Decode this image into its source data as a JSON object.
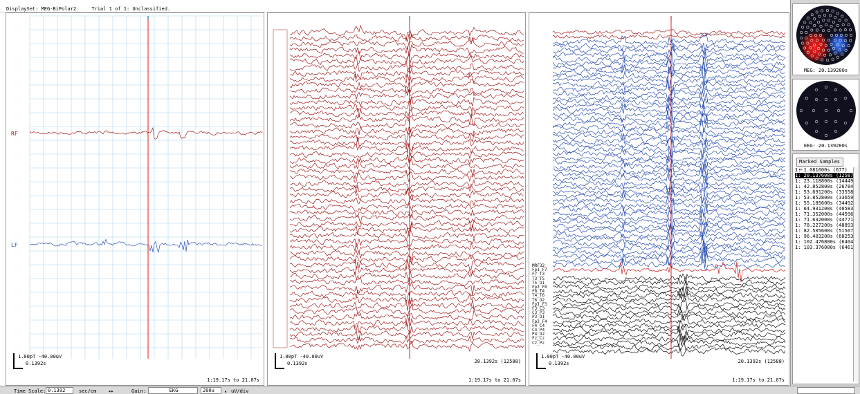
{
  "header": {
    "displayset": "DisplaySet: MEG-BiPolar2",
    "trial": "Trial 1 of 1: Unclassified."
  },
  "panels": [
    {
      "cursor_label": "1",
      "channels": [
        "RF",
        "LF"
      ],
      "scale_top": "1.00pT -40.00uV",
      "scale_time": "0.1392s",
      "sample": "",
      "range": "1:19.17s to 21.07s"
    },
    {
      "cursor_label": "1",
      "channels": [],
      "scale_top": "1.00pT -40.00uV",
      "scale_time": "0.1392s",
      "sample": "20.1392s (12588)",
      "range": "1:19.17s to 21.07s"
    },
    {
      "cursor_label": "1",
      "channels": [
        "MRF32",
        "Fp1_F7",
        "F7_T3",
        "T3_T5",
        "T5_O1",
        "Fp2_F8",
        "F8_T4",
        "T4_T6",
        "T6_O2",
        "Fp1_F3",
        "F3_C3",
        "C3_P3",
        "P3_O1",
        "Fp2_F4",
        "F4_C4",
        "C4_P4",
        "P4_O2",
        "Fz_Cz",
        "Cz_Pz"
      ],
      "scale_top": "1.00pT -40.00uV",
      "scale_time": "0.1392s",
      "sample": "20.1392s (12588)",
      "range": "1:19.17s to 21.07s"
    }
  ],
  "topo": {
    "meg_caption": "MEG: 20.139200s",
    "eeg_caption": "EEG: 20.139200s"
  },
  "marked": {
    "button_label": "Marked Samples",
    "items": [
      "1: 1.081600s (677)",
      "1: 20.137600s (12587)",
      "1: 23.118800s (14449)",
      "1: 42.852800s (26784)",
      "1: 53.691200s (33558)",
      "1: 53.852800s (33659)",
      "1: 55.185600s (34492)",
      "1: 64.931200s (40583)",
      "1: 71.352000s (44596)",
      "1: 71.632000s (44771)",
      "1: 78.227200s (48893)",
      "1: 82.505600s (51567)",
      "1: 96.403200s (60253)",
      "1: 102.476800s (64049)",
      "1: 103.376000s (64611)"
    ],
    "selected_index": 1
  },
  "toolbar": {
    "time_scale_label": "Time Scale:",
    "time_scale_value": "0.1392",
    "time_unit": "sec/cm",
    "gain_label": "Gain:",
    "gain_channel": "EKG",
    "gain_value": "200u",
    "gain_unit": "uV/div"
  },
  "colors": {
    "meg_red": "#a31c1c",
    "meg_blue": "#2a4fb4",
    "eeg_black": "#111111",
    "grid": "#a8d4f0",
    "cursor": "#e00000"
  }
}
